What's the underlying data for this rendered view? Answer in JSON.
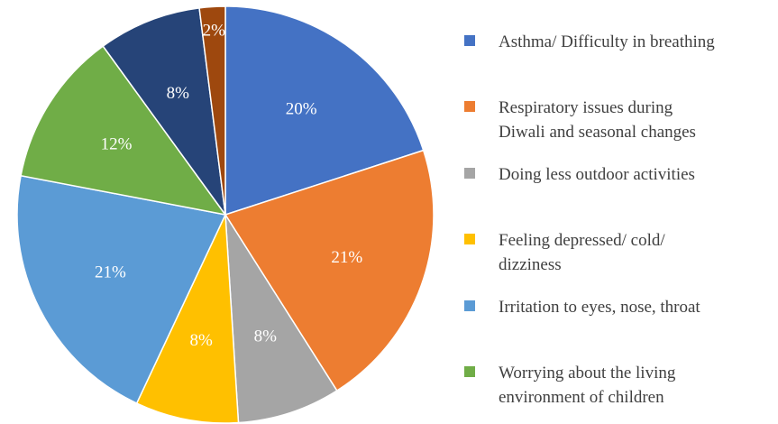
{
  "chart_data": {
    "type": "pie",
    "categories": [
      "Asthma/ Difficulty in breathing",
      "Respiratory issues during\nDiwali and seasonal changes",
      "Doing less outdoor activities",
      "Feeling depressed/ cold/\ndizziness",
      "Irritation to eyes, nose, throat",
      "Worrying about the living\nenvironment of children",
      null,
      null
    ],
    "values": [
      20,
      21,
      8,
      8,
      21,
      12,
      8,
      2
    ],
    "value_labels": [
      "20%",
      "21%",
      "8%",
      "8%",
      "21%",
      "12%",
      "8%",
      "2%"
    ],
    "colors": [
      "#4472c4",
      "#ed7d31",
      "#a5a5a5",
      "#ffc000",
      "#5b9bd5",
      "#70ad47",
      "#264478",
      "#9e480e"
    ],
    "legend": "right"
  }
}
